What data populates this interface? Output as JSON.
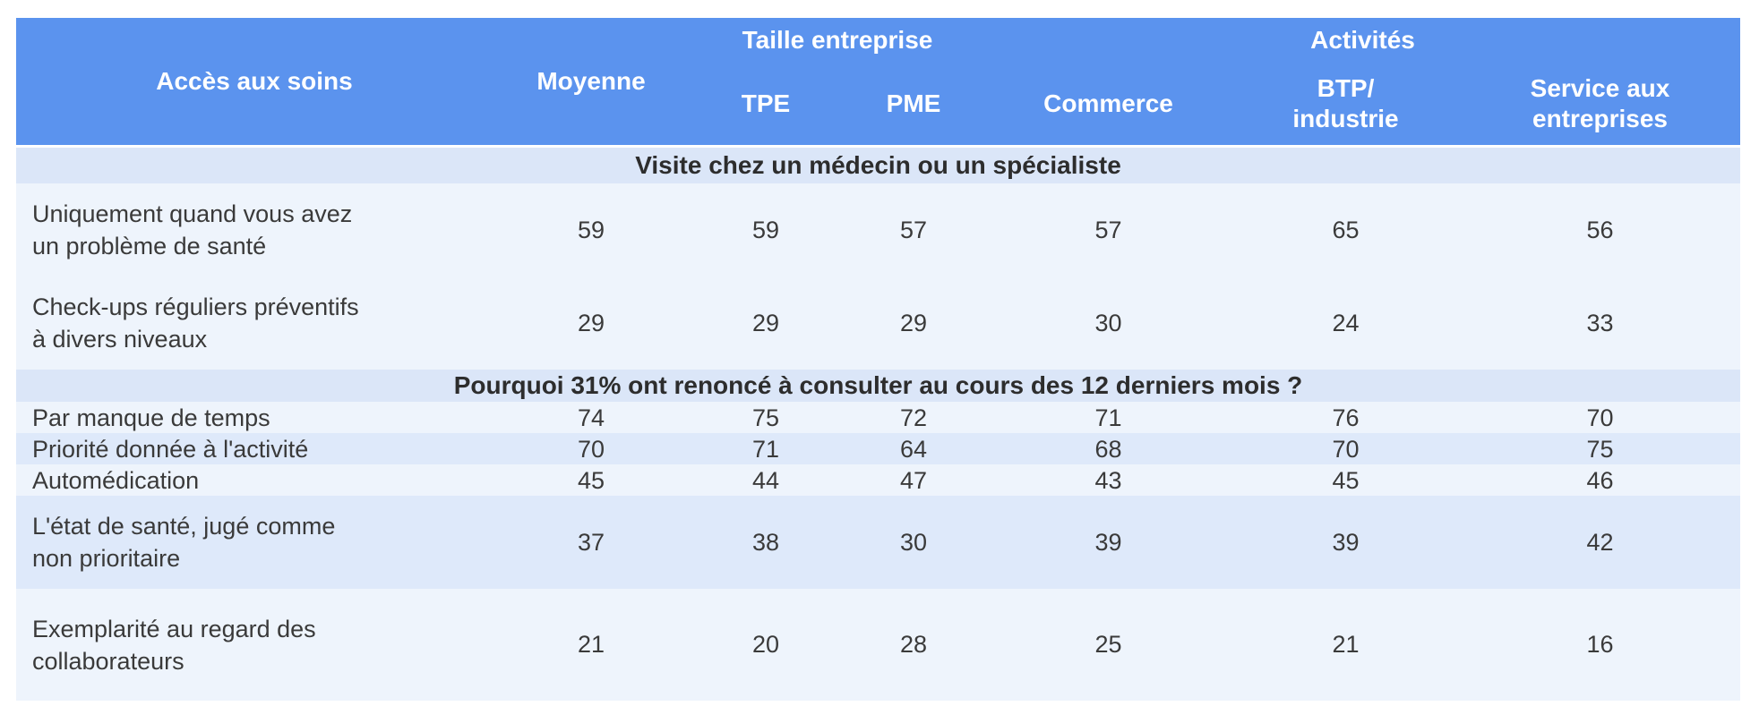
{
  "header": {
    "acces": "Accès aux soins",
    "moyenne": "Moyenne",
    "taille": "Taille entreprise",
    "tpe": "TPE",
    "pme": "PME",
    "activites": "Activités",
    "commerce": "Commerce",
    "btp": "BTP/\nindustrie",
    "service": "Service aux\nentreprises"
  },
  "sections": [
    {
      "title": "Visite chez un médecin ou un spécialiste",
      "rows": [
        {
          "label": "Uniquement quand vous avez\nun problème de santé",
          "values": [
            59,
            59,
            57,
            57,
            65,
            56
          ]
        },
        {
          "label": "Check-ups réguliers préventifs\nà divers niveaux",
          "values": [
            29,
            29,
            29,
            30,
            24,
            33
          ]
        }
      ]
    },
    {
      "title": "Pourquoi 31% ont renoncé à consulter au cours des 12 derniers mois ?",
      "rows": [
        {
          "label": "Par manque de temps",
          "values": [
            74,
            75,
            72,
            71,
            76,
            70
          ]
        },
        {
          "label": "Priorité donnée à l'activité",
          "values": [
            70,
            71,
            64,
            68,
            70,
            75
          ]
        },
        {
          "label": "Automédication",
          "values": [
            45,
            44,
            47,
            43,
            45,
            46
          ]
        },
        {
          "label": "L'état de santé, jugé comme\nnon prioritaire",
          "values": [
            37,
            38,
            30,
            39,
            39,
            42
          ]
        },
        {
          "label": "Exemplarité au regard des\ncollaborateurs",
          "values": [
            21,
            20,
            28,
            25,
            21,
            16
          ]
        }
      ]
    }
  ],
  "chart_data": {
    "type": "table",
    "title": "Accès aux soins",
    "columns": [
      "Moyenne",
      "TPE",
      "PME",
      "Commerce",
      "BTP/industrie",
      "Service aux entreprises"
    ],
    "column_groups": [
      {
        "label": "Taille entreprise",
        "columns": [
          "TPE",
          "PME"
        ]
      },
      {
        "label": "Activités",
        "columns": [
          "Commerce",
          "BTP/industrie",
          "Service aux entreprises"
        ]
      }
    ],
    "sections": [
      {
        "title": "Visite chez un médecin ou un spécialiste",
        "rows": [
          {
            "label": "Uniquement quand vous avez un problème de santé",
            "values": [
              59,
              59,
              57,
              57,
              65,
              56
            ]
          },
          {
            "label": "Check-ups réguliers préventifs à divers niveaux",
            "values": [
              29,
              29,
              29,
              30,
              24,
              33
            ]
          }
        ]
      },
      {
        "title": "Pourquoi 31% ont renoncé à consulter au cours des 12 derniers mois ?",
        "rows": [
          {
            "label": "Par manque de temps",
            "values": [
              74,
              75,
              72,
              71,
              76,
              70
            ]
          },
          {
            "label": "Priorité donnée à l'activité",
            "values": [
              70,
              71,
              64,
              68,
              70,
              75
            ]
          },
          {
            "label": "Automédication",
            "values": [
              45,
              44,
              47,
              43,
              45,
              46
            ]
          },
          {
            "label": "L'état de santé, jugé comme non prioritaire",
            "values": [
              37,
              38,
              30,
              39,
              39,
              42
            ]
          },
          {
            "label": "Exemplarité au regard des collaborateurs",
            "values": [
              21,
              20,
              28,
              25,
              21,
              16
            ]
          }
        ]
      }
    ]
  },
  "theme": {
    "page_bg": "#ffffff",
    "header_bg": "#5b93ee",
    "header_text": "#ffffff",
    "section_band_bg": "#dbe6f8",
    "section_text": "#2d2d2d",
    "row_light_bg": "#eef4fc",
    "row_dark_bg": "#dee9fa",
    "body_text": "#3a3a3a"
  }
}
